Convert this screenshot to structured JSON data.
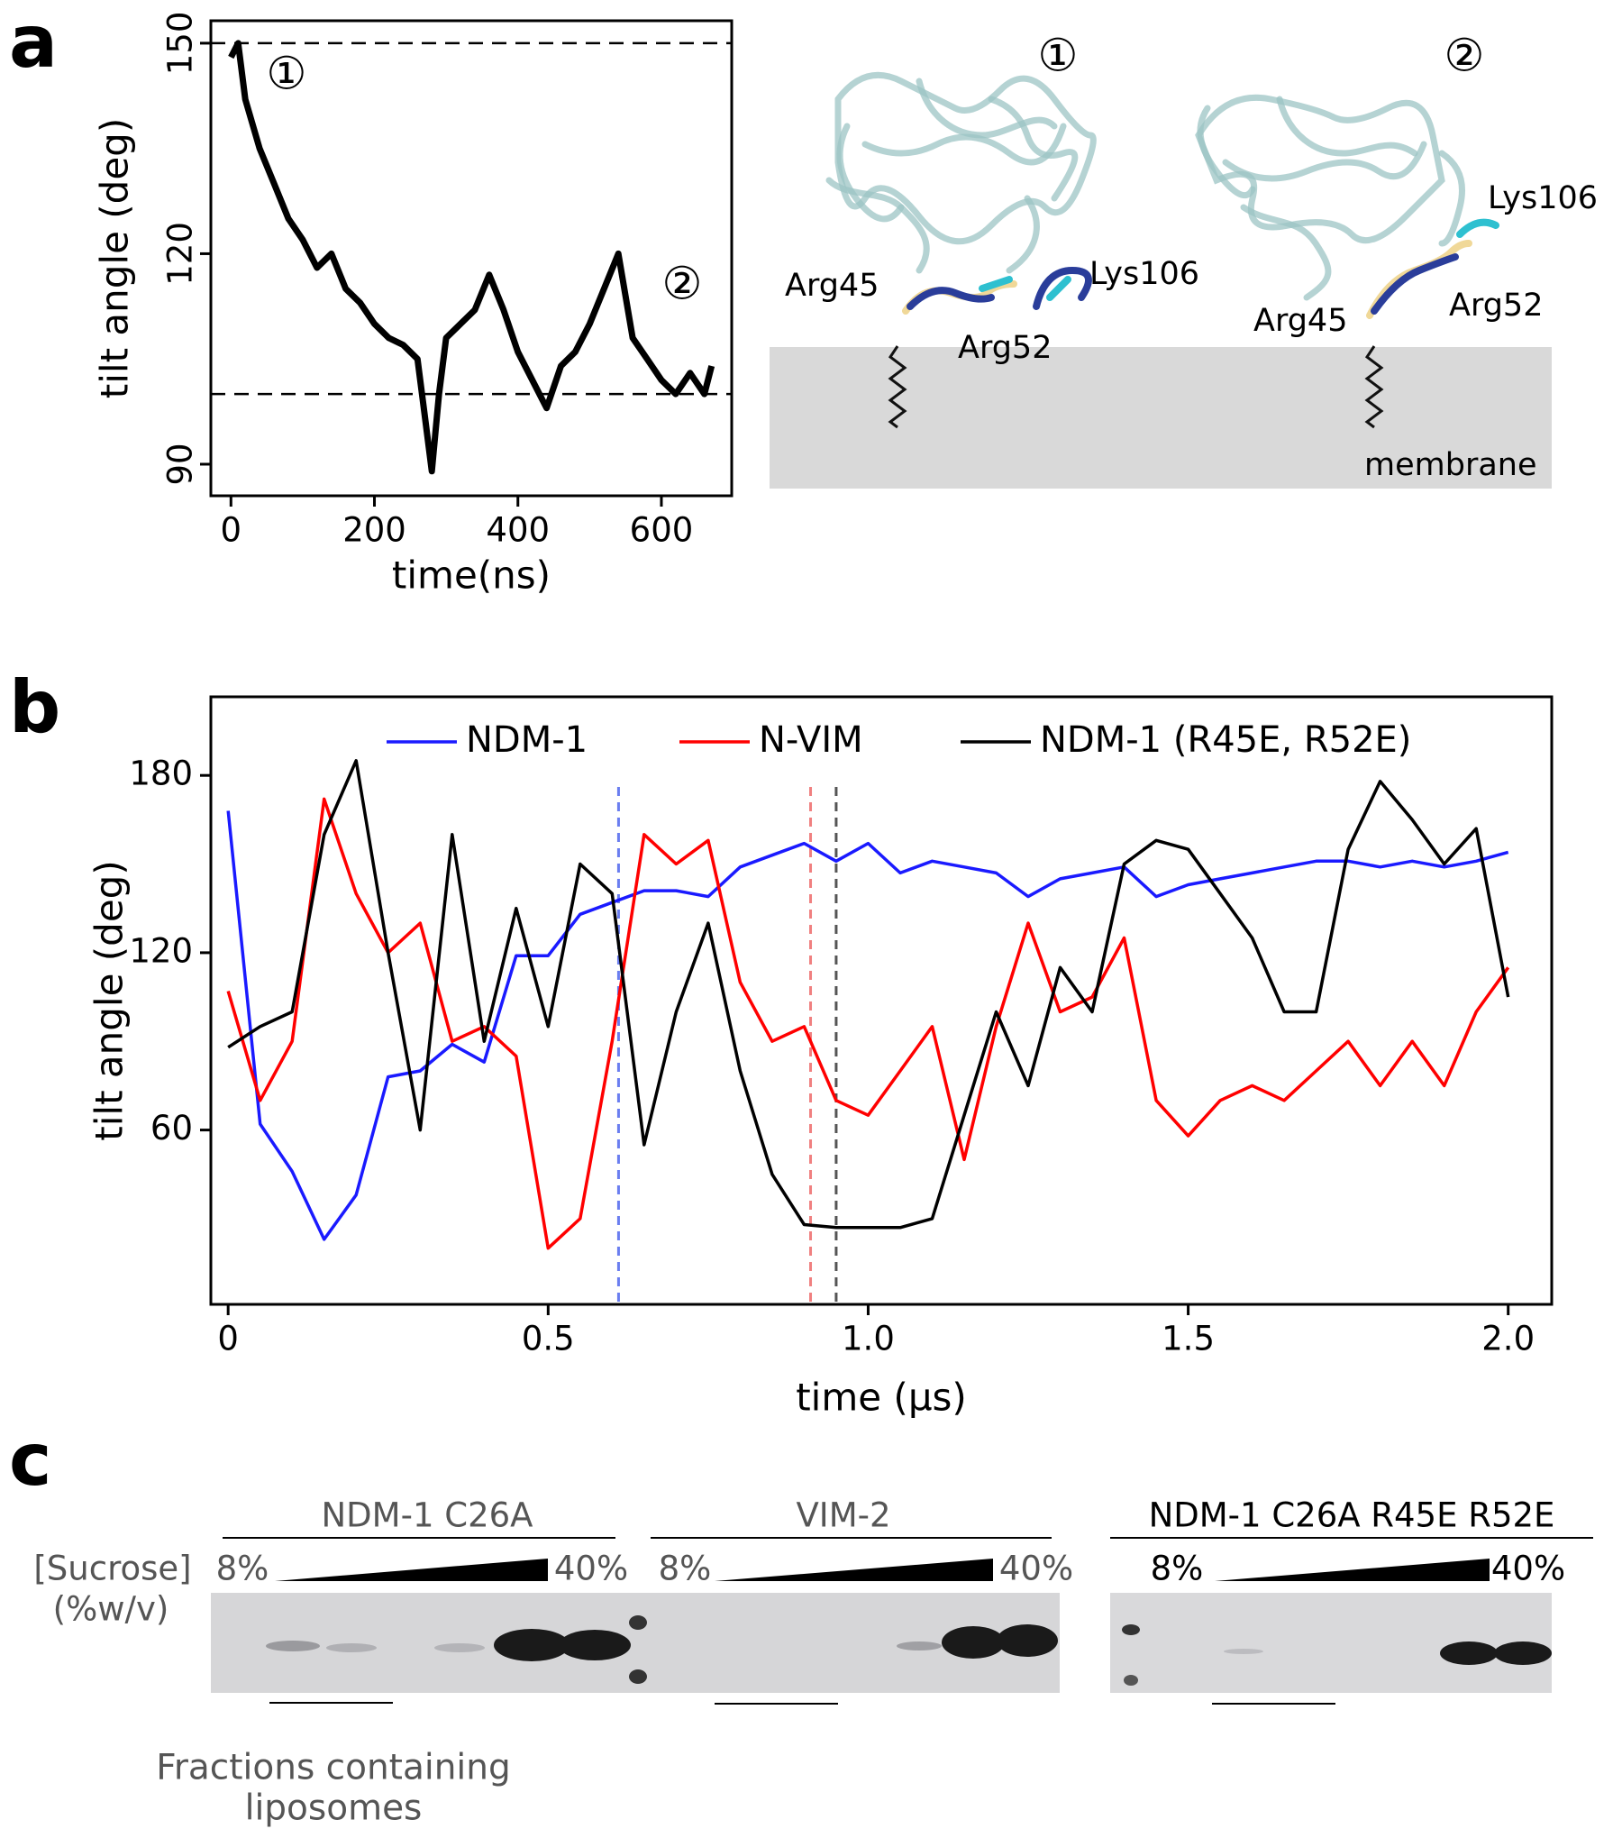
{
  "panel_labels": [
    "a",
    "b",
    "c"
  ],
  "chart_data": [
    {
      "type": "line",
      "x_label": "time(ns)",
      "y_label": "tilt angle (deg)",
      "x": [
        0,
        10,
        20,
        40,
        60,
        80,
        100,
        120,
        140,
        160,
        180,
        200,
        220,
        240,
        260,
        270,
        280,
        290,
        300,
        320,
        340,
        360,
        380,
        400,
        420,
        440,
        460,
        480,
        500,
        520,
        540,
        560,
        580,
        600,
        620,
        640,
        660,
        670
      ],
      "series": [
        {
          "color": "#000000",
          "values": [
            148,
            150,
            142,
            135,
            130,
            125,
            122,
            118,
            120,
            115,
            113,
            110,
            108,
            107,
            105,
            97,
            89,
            100,
            108,
            110,
            112,
            117,
            112,
            106,
            102,
            98,
            104,
            106,
            110,
            115,
            120,
            108,
            105,
            102,
            100,
            103,
            100,
            104
          ]
        }
      ],
      "xlim": [
        -28,
        698
      ],
      "ylim": [
        85.5,
        153.2
      ],
      "xticks": [
        0,
        200,
        400,
        600
      ],
      "yticks": [
        90,
        120,
        150
      ],
      "hlines": [
        150,
        100
      ],
      "annotations": [
        "①",
        "②"
      ]
    },
    {
      "type": "line",
      "x_label": "time (µs)",
      "y_label": "tilt angle (deg)",
      "x": [
        0,
        0.05,
        0.1,
        0.15,
        0.2,
        0.25,
        0.3,
        0.35,
        0.4,
        0.45,
        0.5,
        0.55,
        0.6,
        0.65,
        0.7,
        0.75,
        0.8,
        0.85,
        0.9,
        0.95,
        1,
        1.05,
        1.1,
        1.15,
        1.2,
        1.25,
        1.3,
        1.35,
        1.4,
        1.45,
        1.5,
        1.55,
        1.6,
        1.65,
        1.7,
        1.75,
        1.8,
        1.85,
        1.9,
        1.95,
        2
      ],
      "series": [
        {
          "name": "NDM-1",
          "color": "#1a1aff",
          "values": [
            168,
            62,
            46,
            23,
            38,
            78,
            80,
            89,
            83,
            119,
            119,
            133,
            137,
            141,
            141,
            139,
            149,
            153,
            157,
            151,
            157,
            147,
            151,
            149,
            147,
            139,
            145,
            147,
            149,
            139,
            143,
            145,
            147,
            149,
            151,
            151,
            149,
            151,
            149,
            151,
            154
          ]
        },
        {
          "name": "N-VIM",
          "color": "#ff0000",
          "values": [
            107,
            70,
            90,
            172,
            140,
            120,
            130,
            90,
            95,
            85,
            20,
            30,
            90,
            160,
            150,
            158,
            110,
            90,
            95,
            70,
            65,
            80,
            95,
            50,
            95,
            130,
            100,
            105,
            125,
            70,
            58,
            70,
            75,
            70,
            80,
            90,
            75,
            90,
            75,
            100,
            115
          ]
        },
        {
          "name": "NDM-1 (R45E, R52E)",
          "color": "#000000",
          "values": [
            88,
            95,
            100,
            160,
            185,
            120,
            60,
            160,
            90,
            135,
            95,
            150,
            140,
            55,
            100,
            130,
            80,
            45,
            28,
            27,
            27,
            27,
            30,
            65,
            100,
            75,
            115,
            100,
            150,
            158,
            155,
            140,
            125,
            100,
            100,
            155,
            178,
            165,
            150,
            162,
            105
          ]
        }
      ],
      "xlim": [
        -0.027,
        2.068
      ],
      "ylim": [
        1,
        206.6
      ],
      "xticks": [
        0,
        0.5,
        {
          "value": 1,
          "label": "1.0"
        },
        1.5,
        {
          "value": 2,
          "label": "2.0"
        }
      ],
      "yticks": [
        60,
        120,
        180
      ],
      "vlines": [
        {
          "x": 0.61,
          "color": "#6a7ef0"
        },
        {
          "x": 0.91,
          "color": "#f08080"
        },
        {
          "x": 0.95,
          "color": "#555555"
        }
      ],
      "legend": "top"
    }
  ],
  "structures": {
    "state_1": {
      "marker": "①",
      "labels": [
        "Arg45",
        "Lys106",
        "Arg52"
      ]
    },
    "state_2": {
      "marker": "②",
      "labels": [
        "Lys106",
        "Arg45",
        "Arg52"
      ]
    },
    "membrane": "membrane"
  },
  "gel": {
    "sucrose_label": "[Sucrose]",
    "units": "(%w/v)",
    "groups": [
      {
        "name": "NDM-1 C26A",
        "low": "8%",
        "high": "40%"
      },
      {
        "name": "VIM-2",
        "low": "8%",
        "high": "40%"
      },
      {
        "name": "NDM-1 C26A R45E R52E",
        "low": "8%",
        "high": "40%"
      }
    ],
    "note": [
      "Fractions containing",
      "liposomes"
    ]
  }
}
